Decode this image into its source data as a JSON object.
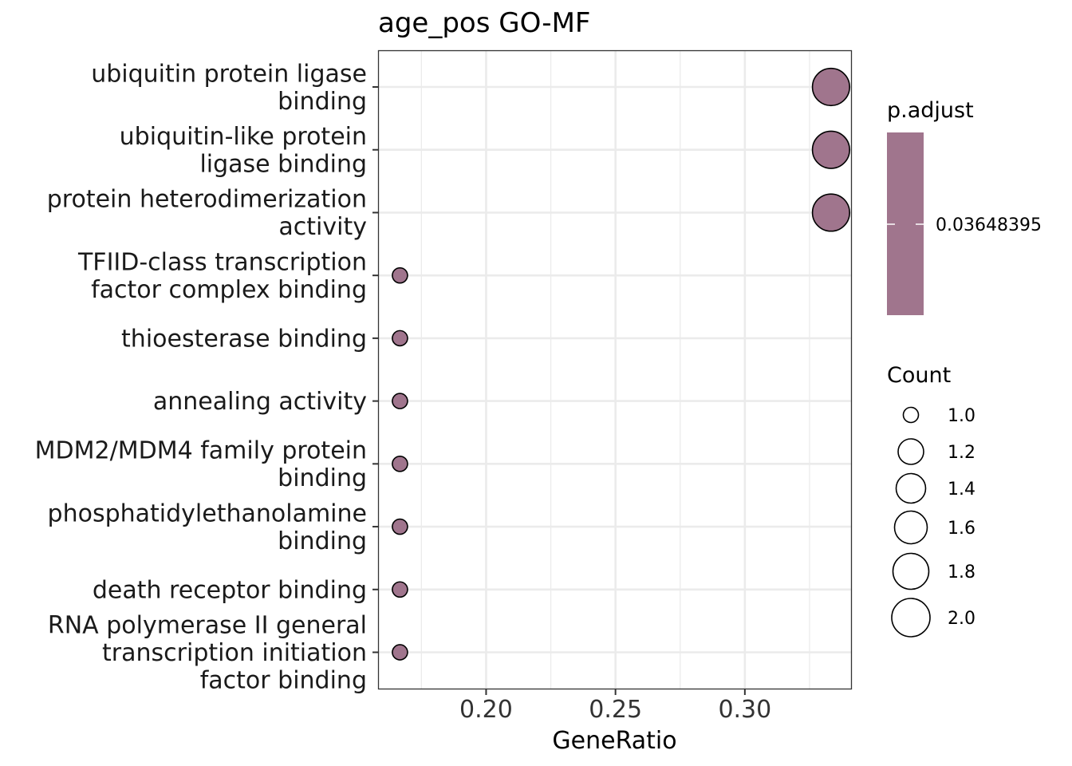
{
  "chart_data": {
    "type": "scatter",
    "title": "age_pos GO-MF",
    "xlabel": "GeneRatio",
    "ylabel": "",
    "xlim": [
      0.1584,
      0.3412
    ],
    "xticks": [
      "0.20",
      "0.25",
      "0.30"
    ],
    "xtick_values": [
      0.2,
      0.25,
      0.3
    ],
    "minor_xticks": [
      0.175,
      0.225,
      0.275,
      0.325
    ],
    "grid": true,
    "categories": [
      [
        "ubiquitin protein ligase",
        "binding"
      ],
      [
        "ubiquitin-like protein",
        "ligase binding"
      ],
      [
        "protein heterodimerization",
        "activity"
      ],
      [
        "TFIID-class transcription",
        "factor complex binding"
      ],
      [
        "thioesterase binding"
      ],
      [
        "annealing activity"
      ],
      [
        "MDM2/MDM4 family protein",
        "binding"
      ],
      [
        "phosphatidylethanolamine",
        "binding"
      ],
      [
        "death receptor binding"
      ],
      [
        "RNA polymerase II general",
        "transcription initiation",
        "factor binding"
      ]
    ],
    "points": [
      {
        "gene_ratio": 0.3333,
        "count": 2,
        "p_adjust": 0.03648395
      },
      {
        "gene_ratio": 0.3333,
        "count": 2,
        "p_adjust": 0.03648395
      },
      {
        "gene_ratio": 0.3333,
        "count": 2,
        "p_adjust": 0.03648395
      },
      {
        "gene_ratio": 0.1667,
        "count": 1,
        "p_adjust": 0.03648395
      },
      {
        "gene_ratio": 0.1667,
        "count": 1,
        "p_adjust": 0.03648395
      },
      {
        "gene_ratio": 0.1667,
        "count": 1,
        "p_adjust": 0.03648395
      },
      {
        "gene_ratio": 0.1667,
        "count": 1,
        "p_adjust": 0.03648395
      },
      {
        "gene_ratio": 0.1667,
        "count": 1,
        "p_adjust": 0.03648395
      },
      {
        "gene_ratio": 0.1667,
        "count": 1,
        "p_adjust": 0.03648395
      },
      {
        "gene_ratio": 0.1667,
        "count": 1,
        "p_adjust": 0.03648395
      }
    ],
    "point_color": "#a0758d",
    "legend": {
      "color_title": "p.adjust",
      "color_value_label": "0.03648395",
      "size_title": "Count",
      "size_values": [
        1.0,
        1.2,
        1.4,
        1.6,
        1.8,
        2.0
      ],
      "size_labels": [
        "1.0",
        "1.2",
        "1.4",
        "1.6",
        "1.8",
        "2.0"
      ]
    }
  }
}
